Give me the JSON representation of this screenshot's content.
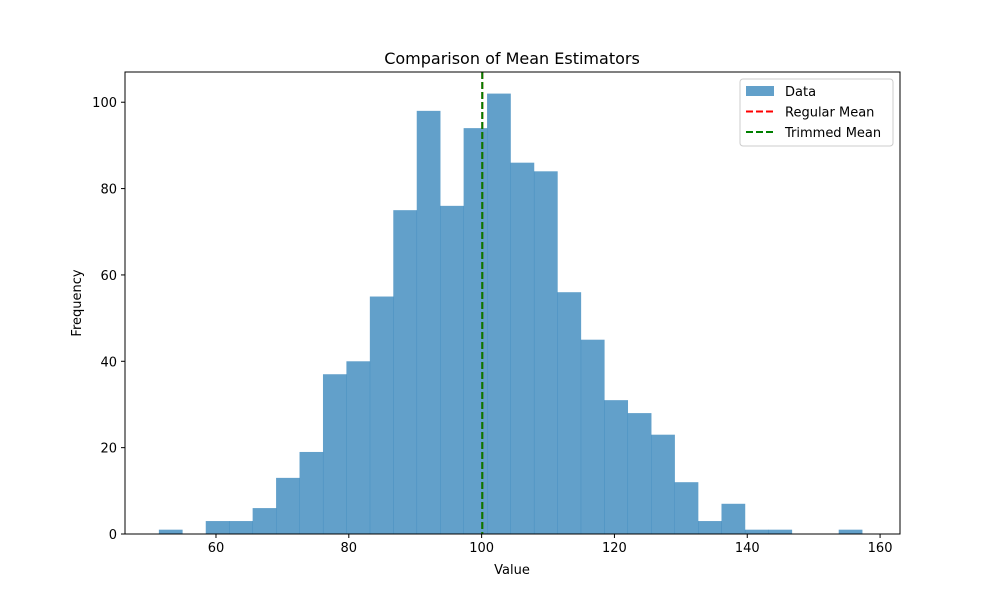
{
  "chart_data": {
    "type": "bar",
    "title": "Comparison of Mean Estimators",
    "xlabel": "Value",
    "ylabel": "Frequency",
    "xlim": [
      46.3,
      163.0
    ],
    "ylim": [
      0,
      107
    ],
    "xticks": [
      60,
      80,
      100,
      120,
      140,
      160
    ],
    "yticks": [
      0,
      20,
      40,
      60,
      80,
      100
    ],
    "bins": {
      "start": 51.4,
      "width": 3.53,
      "counts": [
        1,
        0,
        3,
        3,
        6,
        13,
        19,
        37,
        40,
        55,
        75,
        98,
        76,
        94,
        102,
        86,
        84,
        56,
        45,
        31,
        28,
        23,
        12,
        3,
        7,
        1,
        1,
        0,
        0,
        1
      ]
    },
    "vlines": [
      {
        "name": "Regular Mean",
        "x": 100.1,
        "color": "#ff0000",
        "style": "dashed"
      },
      {
        "name": "Trimmed Mean",
        "x": 100.1,
        "color": "#008000",
        "style": "dashed"
      }
    ],
    "series": [
      {
        "name": "Data",
        "color": "#1f77b4",
        "opacity": 0.7
      }
    ],
    "legend": {
      "placement": "top-right",
      "entries": [
        {
          "label": "Data",
          "kind": "patch",
          "color": "#62a0ca"
        },
        {
          "label": "Regular Mean",
          "kind": "dashed-line",
          "color": "#ff0000"
        },
        {
          "label": "Trimmed Mean",
          "kind": "dashed-line",
          "color": "#008000"
        }
      ]
    },
    "grid": false
  }
}
